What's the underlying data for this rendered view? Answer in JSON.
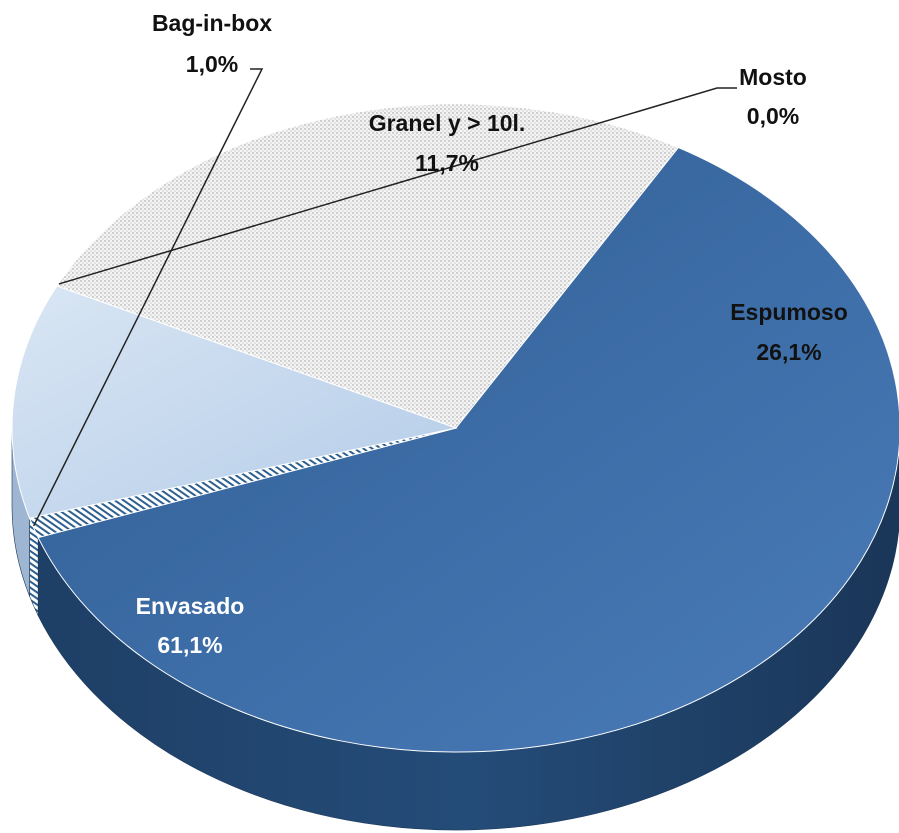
{
  "chart_data": {
    "type": "pie",
    "title": "",
    "slices": [
      {
        "name": "Mosto",
        "value": 0.0,
        "label": "0,0%"
      },
      {
        "name": "Espumoso",
        "value": 26.1,
        "label": "26,1%",
        "color": "#f2f2f2",
        "pattern": "dots"
      },
      {
        "name": "Envasado",
        "value": 61.1,
        "label": "61,1%",
        "color": "#3d6ba3"
      },
      {
        "name": "Bag-in-box",
        "value": 1.0,
        "label": "1,0%",
        "color": "#ffffff",
        "pattern": "diagonal-stripes"
      },
      {
        "name": "Granel y > 10l.",
        "value": 11.7,
        "label": "11,7%",
        "color": "#c6d9ee"
      }
    ],
    "legend": "none"
  }
}
